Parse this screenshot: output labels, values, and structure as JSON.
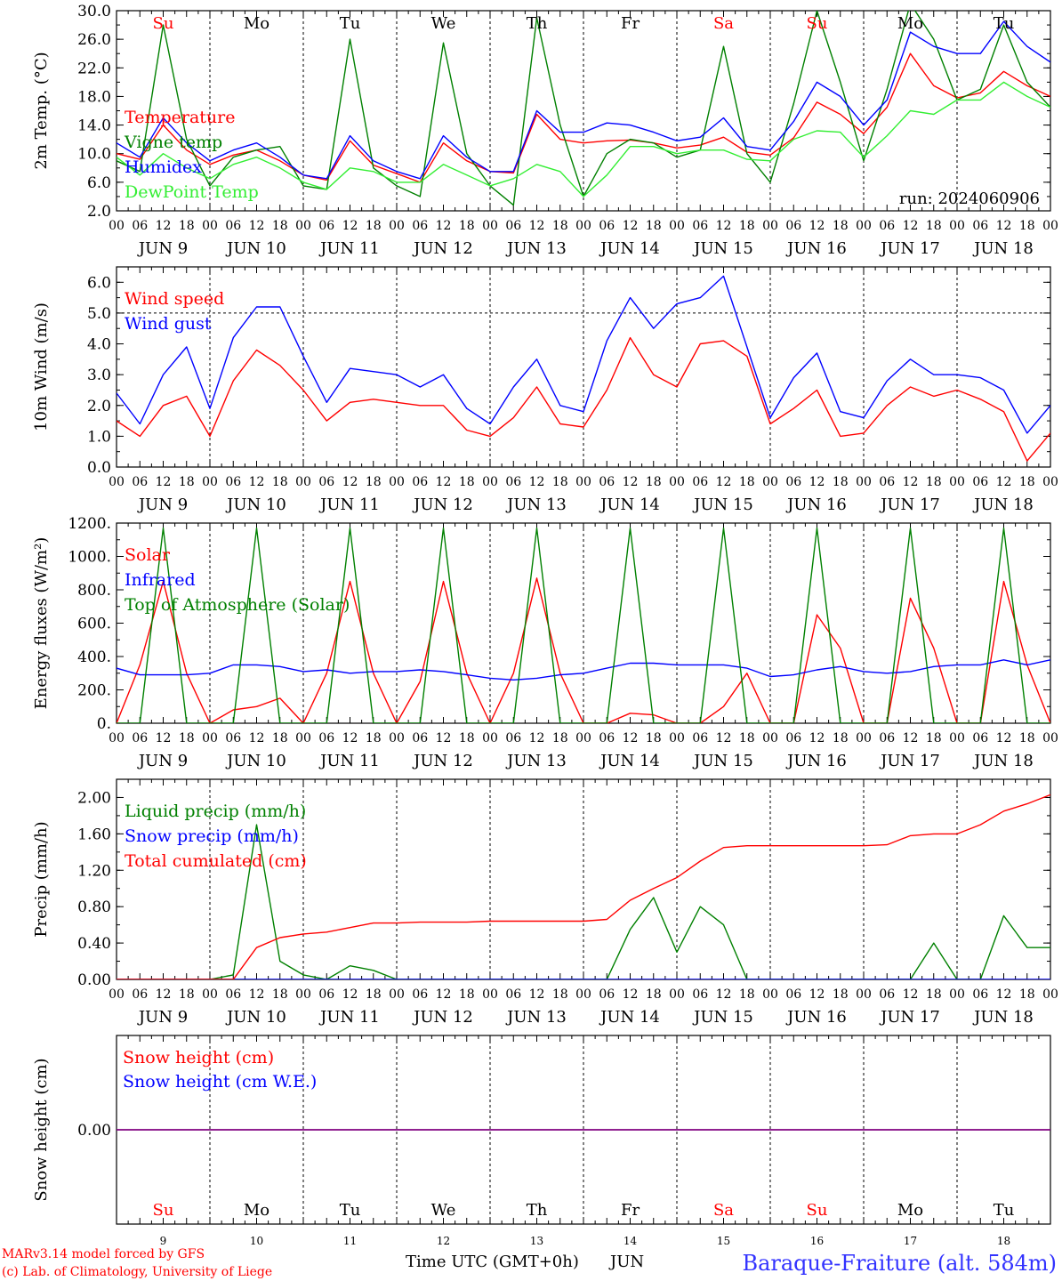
{
  "meteogram": {
    "day_names": [
      "Su",
      "Mo",
      "Tu",
      "We",
      "Th",
      "Fr",
      "Sa",
      "Su",
      "Mo",
      "Tu"
    ],
    "weekend_flags": [
      true,
      false,
      false,
      false,
      false,
      false,
      true,
      true,
      false,
      false
    ],
    "date_labels": [
      "JUN  9",
      "JUN 10",
      "JUN 11",
      "JUN 12",
      "JUN 13",
      "JUN 14",
      "JUN 15",
      "JUN 16",
      "JUN 17",
      "JUN 18"
    ],
    "hour_labels": [
      "00",
      "06",
      "12",
      "18"
    ],
    "final_hour_label": "00",
    "bottom_day_numbers": [
      "9",
      "10",
      "11",
      "12",
      "13",
      "14",
      "15",
      "16",
      "17",
      "18"
    ],
    "bottom_month": "JUN",
    "xlabel": "Time UTC (GMT+0h)",
    "footer_left": [
      "MARv3.14 model forced by GFS",
      "(c) Lab. of Climatology, University of Liege"
    ],
    "station": "Baraque-Fraiture (alt. 584m)",
    "run_label": "run: 2024060906",
    "colors": {
      "red": "#ff0000",
      "green": "#008000",
      "blue": "#0000ff",
      "lime": "#33ee33",
      "purple": "#800080",
      "navy": "#000080"
    }
  },
  "chart_data": [
    {
      "type": "line",
      "ylabel": "2m Temp. (°C)",
      "ylim": [
        2,
        30
      ],
      "yticks": [
        "2.0",
        "6.0",
        "10.0",
        "14.0",
        "18.0",
        "22.0",
        "26.0",
        "30.0"
      ],
      "x_hours": [
        0,
        6,
        12,
        18,
        24,
        30,
        36,
        42,
        48,
        54,
        60,
        66,
        72,
        78,
        84,
        90,
        96,
        102,
        108,
        114,
        120,
        126,
        132,
        138,
        144,
        150,
        156,
        162,
        168,
        174,
        180,
        186,
        192,
        198,
        204,
        210,
        216,
        222,
        228,
        234,
        240
      ],
      "series": [
        {
          "name": "Temperature",
          "color": "red",
          "values": [
            10.0,
            9.2,
            14.0,
            10.5,
            8.5,
            9.8,
            10.5,
            9.0,
            7.0,
            6.3,
            11.8,
            8.4,
            7.2,
            6.0,
            11.5,
            9.0,
            7.5,
            7.3,
            15.5,
            12.0,
            11.5,
            11.8,
            11.9,
            11.5,
            10.8,
            11.2,
            12.3,
            10.2,
            9.8,
            12.2,
            17.2,
            15.5,
            12.8,
            16.5,
            24.0,
            19.5,
            17.8,
            18.5,
            21.5,
            19.5,
            18.0
          ]
        },
        {
          "name": "Vigne temp",
          "color": "green",
          "values": [
            9.0,
            7.5,
            28.0,
            12.0,
            5.5,
            9.5,
            10.5,
            11.0,
            5.5,
            5.0,
            26.0,
            8.0,
            5.5,
            4.0,
            25.5,
            10.0,
            5.5,
            2.8,
            29.0,
            14.0,
            4.0,
            10.0,
            12.0,
            11.5,
            9.5,
            10.5,
            25.0,
            10.0,
            6.0,
            17.0,
            30.0,
            20.0,
            9.0,
            19.0,
            31.0,
            26.0,
            17.5,
            19.0,
            28.0,
            20.0,
            16.5
          ]
        },
        {
          "name": "Humidex",
          "color": "blue",
          "values": [
            11.5,
            9.5,
            15.0,
            11.5,
            9.0,
            10.5,
            11.5,
            9.5,
            7.0,
            6.5,
            12.5,
            9.0,
            7.5,
            6.5,
            12.5,
            9.5,
            7.5,
            7.5,
            16.0,
            13.0,
            13.0,
            14.3,
            14.0,
            13.0,
            11.8,
            12.3,
            15.0,
            11.0,
            10.5,
            14.5,
            20.0,
            18.0,
            14.0,
            17.5,
            27.0,
            25.0,
            24.0,
            24.0,
            28.5,
            25.0,
            22.8
          ]
        },
        {
          "name": "DewPoint Temp",
          "color": "lime",
          "values": [
            9.5,
            7.0,
            10.0,
            8.0,
            6.5,
            8.5,
            9.5,
            8.0,
            6.0,
            5.0,
            8.0,
            7.5,
            6.0,
            6.0,
            8.5,
            7.0,
            5.5,
            6.5,
            8.5,
            7.5,
            4.0,
            7.0,
            11.0,
            11.0,
            10.0,
            10.5,
            10.5,
            9.2,
            9.0,
            12.0,
            13.2,
            13.0,
            9.5,
            12.5,
            16.0,
            15.5,
            17.5,
            17.5,
            20.0,
            18.0,
            16.5
          ]
        }
      ]
    },
    {
      "type": "line",
      "ylabel": "10m Wind (m/s)",
      "ylim": [
        0,
        6.5
      ],
      "yticks": [
        "0.0",
        "1.0",
        "2.0",
        "3.0",
        "4.0",
        "5.0",
        "6.0"
      ],
      "x_hours": [
        0,
        6,
        12,
        18,
        24,
        30,
        36,
        42,
        48,
        54,
        60,
        66,
        72,
        78,
        84,
        90,
        96,
        102,
        108,
        114,
        120,
        126,
        132,
        138,
        144,
        150,
        156,
        162,
        168,
        174,
        180,
        186,
        192,
        198,
        204,
        210,
        216,
        222,
        228,
        234,
        240
      ],
      "series": [
        {
          "name": "Wind speed",
          "color": "red",
          "values": [
            1.5,
            1.0,
            2.0,
            2.3,
            1.0,
            2.8,
            3.8,
            3.3,
            2.5,
            1.5,
            2.1,
            2.2,
            2.1,
            2.0,
            2.0,
            1.2,
            1.0,
            1.6,
            2.6,
            1.4,
            1.3,
            2.5,
            4.2,
            3.0,
            2.6,
            4.0,
            4.1,
            3.6,
            1.4,
            1.9,
            2.5,
            1.0,
            1.1,
            2.0,
            2.6,
            2.3,
            2.5,
            2.2,
            1.8,
            0.2,
            1.1
          ]
        },
        {
          "name": "Wind gust",
          "color": "blue",
          "values": [
            2.4,
            1.4,
            3.0,
            3.9,
            1.9,
            4.2,
            5.2,
            5.2,
            3.6,
            2.1,
            3.2,
            3.1,
            3.0,
            2.6,
            3.0,
            1.9,
            1.4,
            2.6,
            3.5,
            2.0,
            1.8,
            4.1,
            5.5,
            4.5,
            5.3,
            5.5,
            6.2,
            3.9,
            1.6,
            2.9,
            3.7,
            1.8,
            1.6,
            2.8,
            3.5,
            3.0,
            3.0,
            2.9,
            2.5,
            1.1,
            2.0
          ]
        }
      ]
    },
    {
      "type": "line",
      "ylabel": "Energy fluxes (W/m²)",
      "ylim": [
        0,
        1200
      ],
      "yticks": [
        "0.",
        "200.",
        "400.",
        "600.",
        "800.",
        "1000.",
        "1200."
      ],
      "x_hours": [
        0,
        6,
        12,
        18,
        24,
        30,
        36,
        42,
        48,
        54,
        60,
        66,
        72,
        78,
        84,
        90,
        96,
        102,
        108,
        114,
        120,
        126,
        132,
        138,
        144,
        150,
        156,
        162,
        168,
        174,
        180,
        186,
        192,
        198,
        204,
        210,
        216,
        222,
        228,
        234,
        240
      ],
      "series": [
        {
          "name": "Solar",
          "color": "red",
          "values": [
            0,
            350,
            850,
            300,
            0,
            80,
            100,
            150,
            0,
            300,
            850,
            300,
            0,
            250,
            850,
            300,
            0,
            300,
            870,
            300,
            0,
            0,
            60,
            50,
            0,
            0,
            100,
            300,
            0,
            0,
            650,
            450,
            0,
            0,
            750,
            450,
            0,
            0,
            850,
            350,
            0
          ]
        },
        {
          "name": "Infrared",
          "color": "blue",
          "values": [
            330,
            290,
            290,
            290,
            300,
            350,
            350,
            340,
            310,
            320,
            300,
            310,
            310,
            320,
            310,
            290,
            270,
            260,
            270,
            290,
            300,
            330,
            360,
            360,
            350,
            350,
            350,
            330,
            280,
            290,
            320,
            340,
            310,
            300,
            310,
            340,
            350,
            350,
            380,
            350,
            380
          ]
        },
        {
          "name": "Top of Atmosphere (Solar)",
          "color": "green",
          "values": [
            0,
            0,
            1170,
            0,
            0,
            0,
            1170,
            0,
            0,
            0,
            1170,
            0,
            0,
            0,
            1170,
            0,
            0,
            0,
            1170,
            0,
            0,
            0,
            1170,
            0,
            0,
            0,
            1170,
            0,
            0,
            0,
            1170,
            0,
            0,
            0,
            1170,
            0,
            0,
            0,
            1170,
            0,
            0
          ]
        }
      ]
    },
    {
      "type": "line",
      "ylabel": "Precip (mm/h)",
      "ylim": [
        0,
        2.2
      ],
      "yticks": [
        "0.00",
        "0.40",
        "0.80",
        "1.20",
        "1.60",
        "2.00"
      ],
      "x_hours": [
        0,
        6,
        12,
        18,
        24,
        30,
        36,
        42,
        48,
        54,
        60,
        66,
        72,
        78,
        84,
        90,
        96,
        102,
        108,
        114,
        120,
        126,
        132,
        138,
        144,
        150,
        156,
        162,
        168,
        174,
        180,
        186,
        192,
        198,
        204,
        210,
        216,
        222,
        228,
        234,
        240
      ],
      "series": [
        {
          "name": "Liquid precip (mm/h)",
          "color": "green",
          "values": [
            0,
            0,
            0,
            0,
            0,
            0.05,
            1.7,
            0.2,
            0.05,
            0,
            0.15,
            0.1,
            0,
            0,
            0,
            0,
            0,
            0,
            0,
            0,
            0,
            0,
            0.55,
            0.9,
            0.3,
            0.8,
            0.6,
            0,
            0,
            0,
            0,
            0,
            0,
            0,
            0,
            0.4,
            0,
            0,
            0.7,
            0.35,
            0.35
          ]
        },
        {
          "name": "Snow precip (mm/h)",
          "color": "blue",
          "values": [
            0,
            0,
            0,
            0,
            0,
            0,
            0,
            0,
            0,
            0,
            0,
            0,
            0,
            0,
            0,
            0,
            0,
            0,
            0,
            0,
            0,
            0,
            0,
            0,
            0,
            0,
            0,
            0,
            0,
            0,
            0,
            0,
            0,
            0,
            0,
            0,
            0,
            0,
            0,
            0,
            0
          ]
        },
        {
          "name": "Total cumulated (cm)",
          "color": "red",
          "values": [
            0,
            0,
            0,
            0,
            0,
            0,
            0.35,
            0.46,
            0.5,
            0.52,
            0.57,
            0.62,
            0.62,
            0.63,
            0.63,
            0.63,
            0.64,
            0.64,
            0.64,
            0.64,
            0.64,
            0.66,
            0.87,
            1.0,
            1.12,
            1.3,
            1.45,
            1.47,
            1.47,
            1.47,
            1.47,
            1.47,
            1.47,
            1.48,
            1.58,
            1.6,
            1.6,
            1.7,
            1.85,
            1.93,
            2.03
          ]
        }
      ]
    },
    {
      "type": "line",
      "ylabel": "Snow height (cm)",
      "ylim": [
        -1,
        1
      ],
      "yticks": [
        "0.00"
      ],
      "x_hours": [
        0,
        240
      ],
      "series": [
        {
          "name": "Snow height (cm)",
          "color": "red",
          "values": [
            0,
            0
          ]
        },
        {
          "name": "Snow height (cm W.E.)",
          "color": "blue",
          "values": [
            0,
            0
          ]
        }
      ]
    }
  ]
}
